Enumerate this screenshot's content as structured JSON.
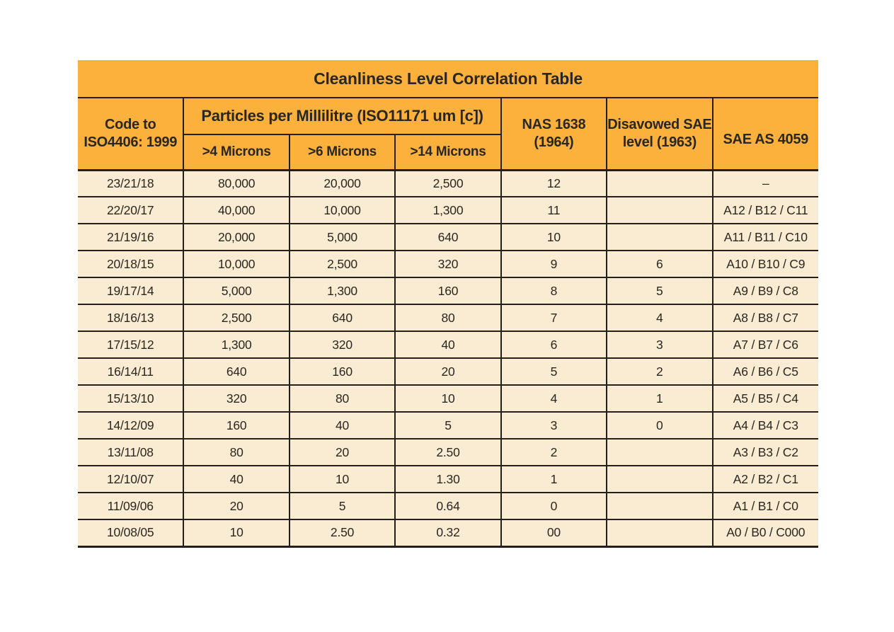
{
  "colors": {
    "orange": "#FBB13C",
    "cream": "#FAECD2",
    "line": "#231F1A",
    "text": "#2A2620",
    "page_bg": "#FFFFFF"
  },
  "table": {
    "title": "Cleanliness Level Correlation Table",
    "header": {
      "code": "Code to\nISO4406: 1999",
      "particles_group": "Particles per Millilitre (ISO11171 um [c])",
      "micron4": ">4 Microns",
      "micron6": ">6 Microns",
      "micron14": ">14 Microns",
      "nas": "NAS 1638\n(1964)",
      "sae_disavowed": "Disavowed SAE\nlevel (1963)",
      "sae_as": "SAE AS 4059"
    },
    "rows": [
      [
        "23/21/18",
        "80,000",
        "20,000",
        "2,500",
        "12",
        "",
        "–"
      ],
      [
        "22/20/17",
        "40,000",
        "10,000",
        "1,300",
        "11",
        "",
        "A12 / B12 / C11"
      ],
      [
        "21/19/16",
        "20,000",
        "5,000",
        "640",
        "10",
        "",
        "A11 / B11 / C10"
      ],
      [
        "20/18/15",
        "10,000",
        "2,500",
        "320",
        "9",
        "6",
        "A10 / B10 / C9"
      ],
      [
        "19/17/14",
        "5,000",
        "1,300",
        "160",
        "8",
        "5",
        "A9 / B9 / C8"
      ],
      [
        "18/16/13",
        "2,500",
        "640",
        "80",
        "7",
        "4",
        "A8 / B8 / C7"
      ],
      [
        "17/15/12",
        "1,300",
        "320",
        "40",
        "6",
        "3",
        "A7 / B7 / C6"
      ],
      [
        "16/14/11",
        "640",
        "160",
        "20",
        "5",
        "2",
        "A6 / B6 / C5"
      ],
      [
        "15/13/10",
        "320",
        "80",
        "10",
        "4",
        "1",
        "A5 / B5 / C4"
      ],
      [
        "14/12/09",
        "160",
        "40",
        "5",
        "3",
        "0",
        "A4 / B4 / C3"
      ],
      [
        "13/11/08",
        "80",
        "20",
        "2.50",
        "2",
        "",
        "A3 / B3 / C2"
      ],
      [
        "12/10/07",
        "40",
        "10",
        "1.30",
        "1",
        "",
        "A2 / B2 / C1"
      ],
      [
        "11/09/06",
        "20",
        "5",
        "0.64",
        "0",
        "",
        "A1 / B1 / C0"
      ],
      [
        "10/08/05",
        "10",
        "2.50",
        "0.32",
        "00",
        "",
        "A0 / B0 / C000"
      ]
    ]
  }
}
